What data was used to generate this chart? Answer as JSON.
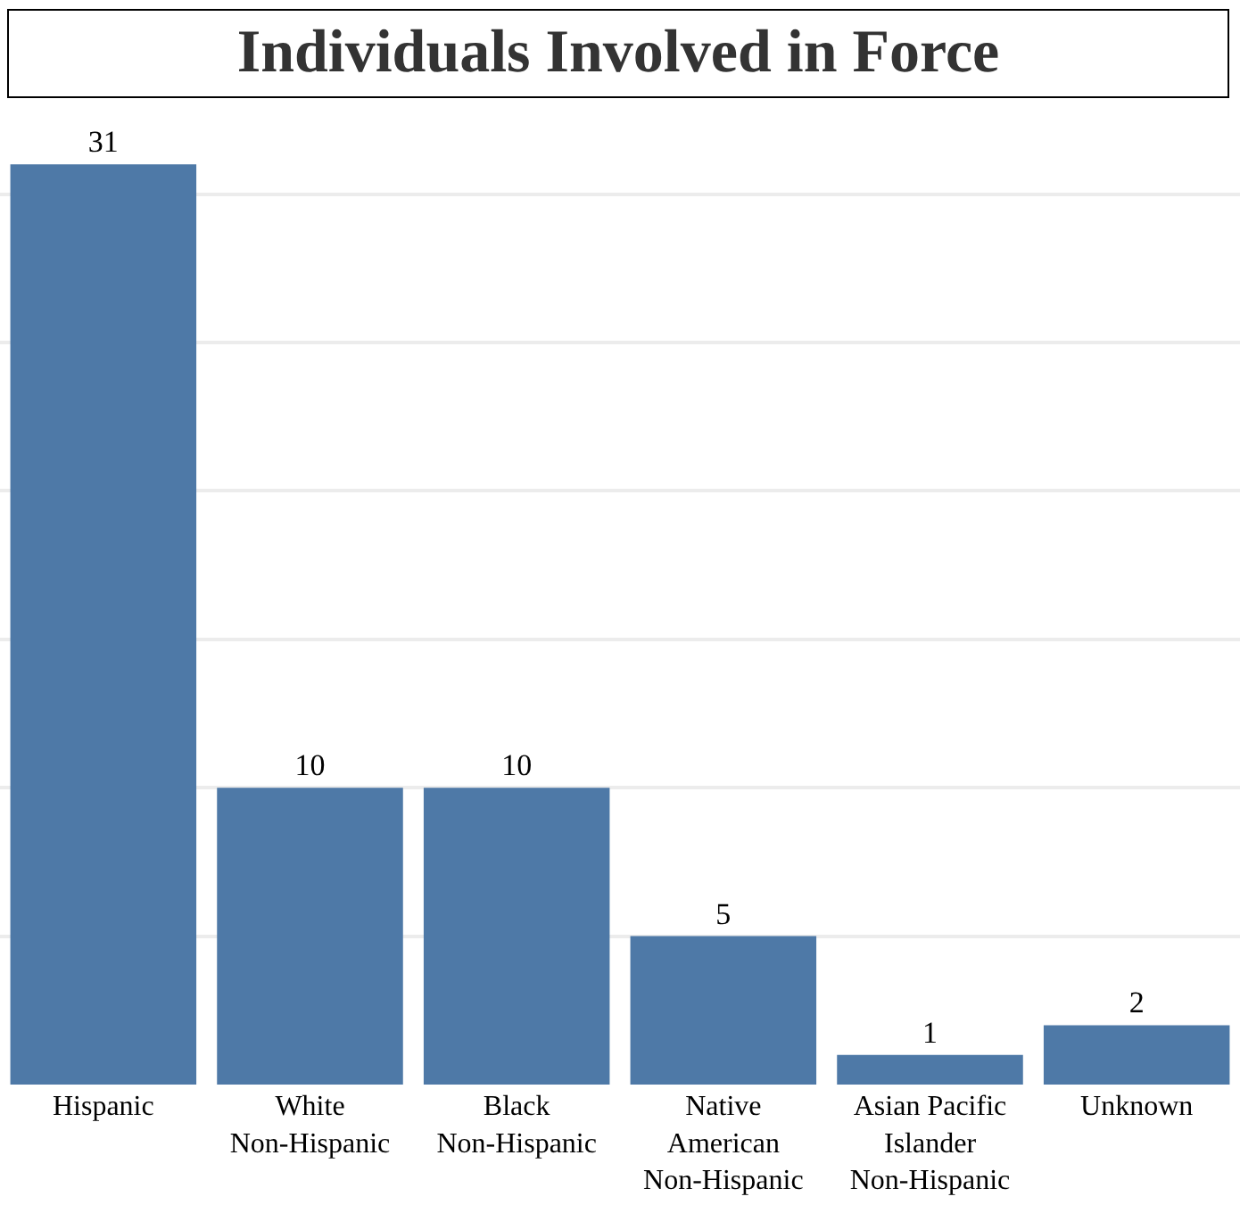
{
  "chart_data": {
    "type": "bar",
    "title": "Individuals Involved in Force",
    "categories": [
      "Hispanic",
      "White\nNon-Hispanic",
      "Black\nNon-Hispanic",
      "Native\nAmerican\nNon-Hispanic",
      "Asian Pacific\nIslander\nNon-Hispanic",
      "Unknown"
    ],
    "values": [
      31,
      10,
      10,
      5,
      1,
      2
    ],
    "color": "#4e79a7",
    "data_labels": true,
    "grid": "y",
    "tick_labels": "x"
  }
}
